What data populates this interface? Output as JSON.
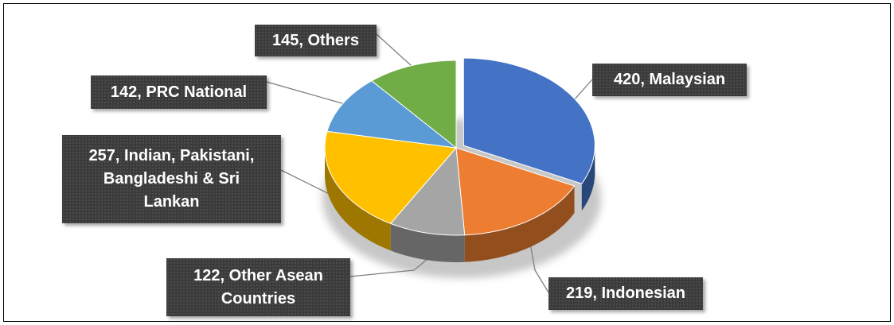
{
  "chart_data": {
    "type": "pie",
    "style": "3d",
    "slices": [
      {
        "label": "420, Malaysian",
        "value": 420,
        "color": "#4472C4"
      },
      {
        "label": "219, Indonesian",
        "value": 219,
        "color": "#ED7D31"
      },
      {
        "label": "122, Other Asean Countries",
        "value": 122,
        "color": "#A5A5A5"
      },
      {
        "label": "257, Indian, Pakistani, Bangladeshi & Sri Lankan",
        "value": 257,
        "color": "#FFC000"
      },
      {
        "label": "142, PRC National",
        "value": 142,
        "color": "#5B9BD5"
      },
      {
        "label": "145, Others",
        "value": 145,
        "color": "#70AD47"
      }
    ],
    "exploded_slice": "420, Malaysian",
    "data_labels": "callout",
    "legend": "none"
  }
}
